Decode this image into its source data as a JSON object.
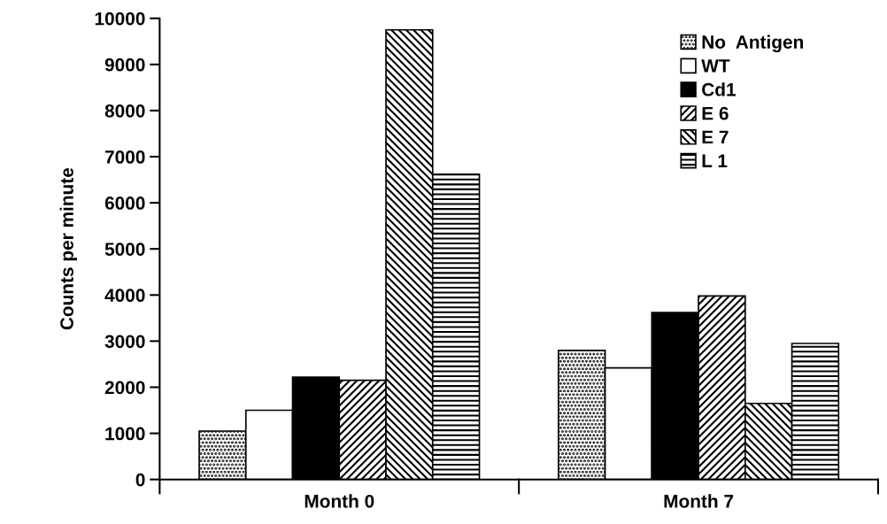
{
  "chart_data": {
    "type": "bar",
    "ylabel": "Counts per minute",
    "categories": [
      "Month 0",
      "Month 7"
    ],
    "series": [
      {
        "name": "No  Antigen",
        "color": "#000000",
        "values": [
          1050,
          2800
        ]
      },
      {
        "name": "WT",
        "color": "#ffffff",
        "values": [
          1500,
          2420
        ]
      },
      {
        "name": "Cd1",
        "color": "#000000",
        "values": [
          2220,
          3620
        ]
      },
      {
        "name": "E 6",
        "color": "#000000",
        "values": [
          2150,
          3980
        ]
      },
      {
        "name": "E 7",
        "color": "#000000",
        "values": [
          9750,
          1650
        ]
      },
      {
        "name": "L 1",
        "color": "#000000",
        "values": [
          6620,
          2950
        ]
      }
    ],
    "ylim": [
      0,
      10000
    ],
    "yticks": [
      0,
      1000,
      2000,
      3000,
      4000,
      5000,
      6000,
      7000,
      8000,
      9000,
      10000
    ],
    "grid": false,
    "legend": "top right"
  }
}
